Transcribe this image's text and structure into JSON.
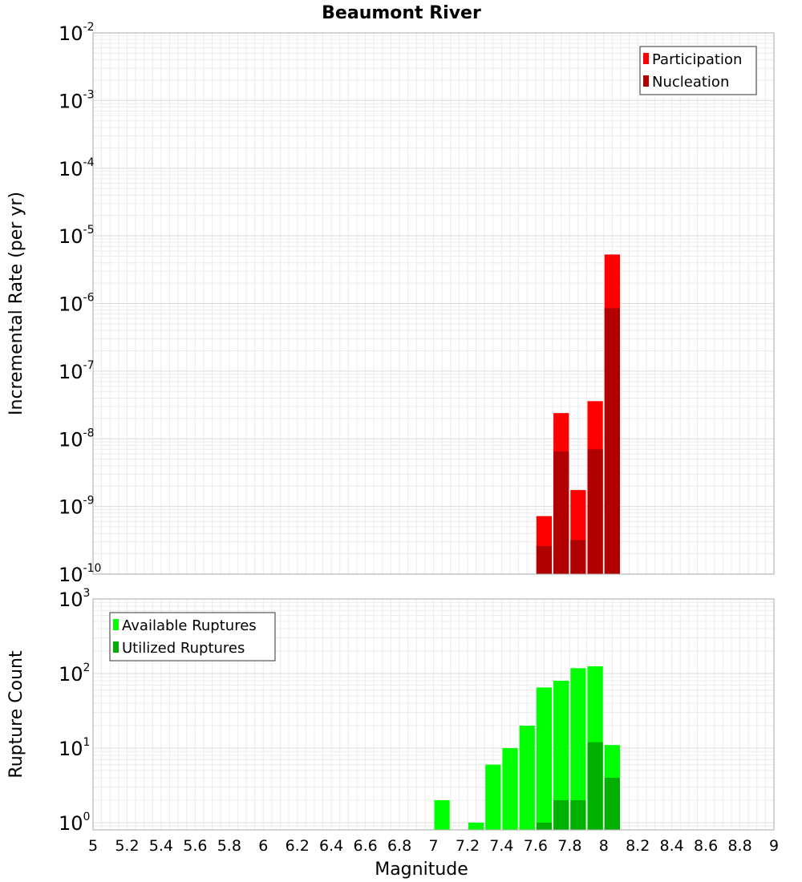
{
  "chart_data": [
    {
      "type": "bar",
      "title": "Beaumont River",
      "ylabel": "Incremental Rate (per yr)",
      "xlabel": "",
      "y_scale": "log",
      "ylim": [
        1e-10,
        0.01
      ],
      "xlim": [
        5,
        9
      ],
      "grid": true,
      "legend_position": "top-right",
      "bar_width": 0.1,
      "x_tick_labels": [
        "5",
        "5.2",
        "5.4",
        "5.6",
        "5.8",
        "6",
        "6.2",
        "6.4",
        "6.6",
        "6.8",
        "7",
        "7.2",
        "7.4",
        "7.6",
        "7.8",
        "8",
        "8.2",
        "8.4",
        "8.6",
        "8.8",
        "9"
      ],
      "y_tick_labels": [
        {
          "base": "10",
          "exp": "-10"
        },
        {
          "base": "10",
          "exp": "-9"
        },
        {
          "base": "10",
          "exp": "-8"
        },
        {
          "base": "10",
          "exp": "-7"
        },
        {
          "base": "10",
          "exp": "-6"
        },
        {
          "base": "10",
          "exp": "-5"
        },
        {
          "base": "10",
          "exp": "-4"
        },
        {
          "base": "10",
          "exp": "-3"
        },
        {
          "base": "10",
          "exp": "-2"
        }
      ],
      "series": [
        {
          "name": "Participation",
          "color": "#ff0000",
          "x": [
            7.65,
            7.75,
            7.85,
            7.95,
            8.05
          ],
          "values": [
            7.2e-10,
            2.4e-08,
            1.75e-09,
            3.6e-08,
            5.3e-06
          ]
        },
        {
          "name": "Nucleation",
          "color": "#b00000",
          "x": [
            7.65,
            7.75,
            7.85,
            7.95,
            8.05
          ],
          "values": [
            2.6e-10,
            6.5e-09,
            3.2e-10,
            7e-09,
            8.5e-07
          ]
        }
      ]
    },
    {
      "type": "bar",
      "title": "",
      "ylabel": "Rupture Count",
      "xlabel": "Magnitude",
      "y_scale": "log",
      "ylim": [
        0.8,
        1000
      ],
      "xlim": [
        5,
        9
      ],
      "grid": true,
      "legend_position": "top-left",
      "bar_width": 0.1,
      "x_tick_labels": [
        "5",
        "5.2",
        "5.4",
        "5.6",
        "5.8",
        "6",
        "6.2",
        "6.4",
        "6.6",
        "6.8",
        "7",
        "7.2",
        "7.4",
        "7.6",
        "7.8",
        "8",
        "8.2",
        "8.4",
        "8.6",
        "8.8",
        "9"
      ],
      "y_tick_labels": [
        {
          "base": "10",
          "exp": "0"
        },
        {
          "base": "10",
          "exp": "1"
        },
        {
          "base": "10",
          "exp": "2"
        },
        {
          "base": "10",
          "exp": "3"
        }
      ],
      "series": [
        {
          "name": "Available Ruptures",
          "color": "#00ff00",
          "x": [
            7.05,
            7.25,
            7.35,
            7.45,
            7.55,
            7.65,
            7.75,
            7.85,
            7.95,
            8.05
          ],
          "values": [
            2,
            1,
            6,
            10,
            20,
            65,
            80,
            118,
            125,
            11
          ]
        },
        {
          "name": "Utilized Ruptures",
          "color": "#00b000",
          "x": [
            7.65,
            7.75,
            7.85,
            7.95,
            8.05
          ],
          "values": [
            1,
            2,
            2,
            12,
            4
          ]
        }
      ]
    }
  ]
}
